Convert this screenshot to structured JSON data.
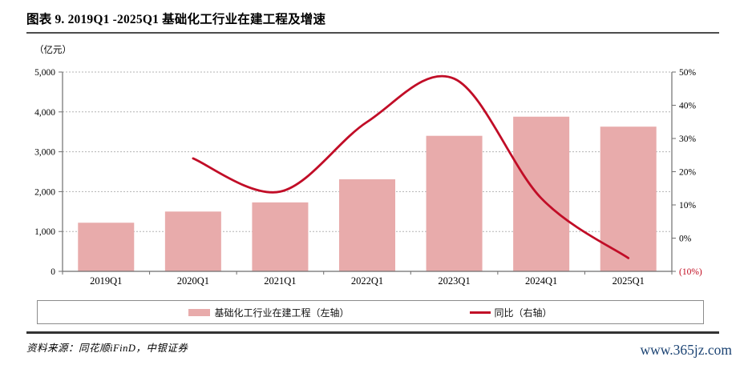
{
  "title": "图表 9. 2019Q1 -2025Q1 基础化工行业在建工程及增速",
  "chart_data": {
    "type": "bar",
    "subtype": "bar+line combo",
    "categories": [
      "2019Q1",
      "2020Q1",
      "2021Q1",
      "2022Q1",
      "2023Q1",
      "2024Q1",
      "2025Q1"
    ],
    "series": [
      {
        "name": "基础化工行业在建工程（左轴）",
        "type": "bar",
        "axis": "left",
        "values": [
          1220,
          1500,
          1730,
          2310,
          3400,
          3880,
          3630
        ]
      },
      {
        "name": "同比（右轴）",
        "type": "line",
        "axis": "right",
        "values": [
          null,
          24,
          14,
          35,
          48,
          12,
          -6
        ]
      }
    ],
    "left_axis": {
      "unit": "（亿元）",
      "min": 0,
      "max": 5000,
      "tick_step": 1000,
      "tick_labels": [
        "0",
        "1,000",
        "2,000",
        "3,000",
        "4,000",
        "5,000"
      ]
    },
    "right_axis": {
      "min": -10,
      "max": 50,
      "tick_step": 10,
      "tick_labels": [
        "(10%)",
        "0%",
        "10%",
        "20%",
        "30%",
        "40%",
        "50%"
      ]
    },
    "grid": "horizontal dashed, left-axis steps only",
    "legend_position": "bottom boxed"
  },
  "legend": {
    "bar_label": "基础化工行业在建工程（左轴）",
    "line_label": "同比（右轴）"
  },
  "footer": {
    "source": "资料来源：同花顺iFinD，中银证券",
    "site": "www.365jz.com"
  },
  "colors": {
    "bar": "#e8abab",
    "line": "#c10d27",
    "negative_tick": "#c00a1e",
    "axis": "#6e6e6e",
    "grid": "#b3b3b3",
    "link": "#1b4373"
  }
}
